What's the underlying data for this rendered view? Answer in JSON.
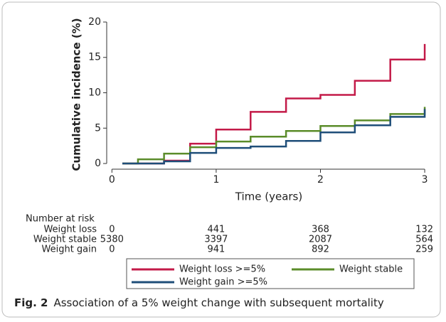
{
  "chart_data": {
    "type": "line",
    "drawstyle": "steps-post",
    "xlabel": "Time (years)",
    "ylabel": "Cumulative incidence (%)",
    "xlim": [
      -0.05,
      3.02
    ],
    "ylim": [
      -0.8,
      20.3
    ],
    "xticks": [
      0,
      1,
      2,
      3
    ],
    "yticks": [
      0,
      5,
      10,
      15,
      20
    ],
    "legend": "bottom",
    "series": [
      {
        "name": "Weight loss >=5%",
        "color": "#c31a48",
        "x": [
          0.1,
          0.5,
          0.75,
          1.0,
          1.33,
          1.67,
          2.0,
          2.33,
          2.67,
          3.0
        ],
        "values": [
          0,
          0.4,
          2.8,
          4.8,
          7.3,
          9.2,
          9.7,
          11.7,
          14.7,
          16.9
        ]
      },
      {
        "name": "Weight stable",
        "color": "#5b8c2a",
        "x": [
          0.1,
          0.25,
          0.5,
          0.75,
          1.0,
          1.33,
          1.67,
          2.0,
          2.33,
          2.67,
          3.0
        ],
        "values": [
          0,
          0.6,
          1.4,
          2.3,
          3.1,
          3.8,
          4.6,
          5.3,
          6.1,
          7.0,
          8.0
        ]
      },
      {
        "name": "Weight gain >=5%",
        "color": "#1f4e79",
        "x": [
          0.1,
          0.5,
          0.75,
          1.0,
          1.33,
          1.67,
          2.0,
          2.33,
          2.67,
          3.0
        ],
        "values": [
          0,
          0.3,
          1.5,
          2.2,
          2.4,
          3.2,
          4.4,
          5.4,
          6.6,
          7.7
        ]
      }
    ]
  },
  "risk_table": {
    "title": "Number at risk",
    "rows": [
      {
        "label": "Weight loss",
        "counts": [
          0,
          441,
          368,
          132
        ]
      },
      {
        "label": "Weight stable",
        "counts": [
          5380,
          3397,
          2087,
          564
        ]
      },
      {
        "label": "Weight gain",
        "counts": [
          0,
          941,
          892,
          259
        ]
      }
    ]
  },
  "caption": {
    "label": "Fig. 2",
    "text": "Association of a 5% weight change with subsequent mortality"
  }
}
